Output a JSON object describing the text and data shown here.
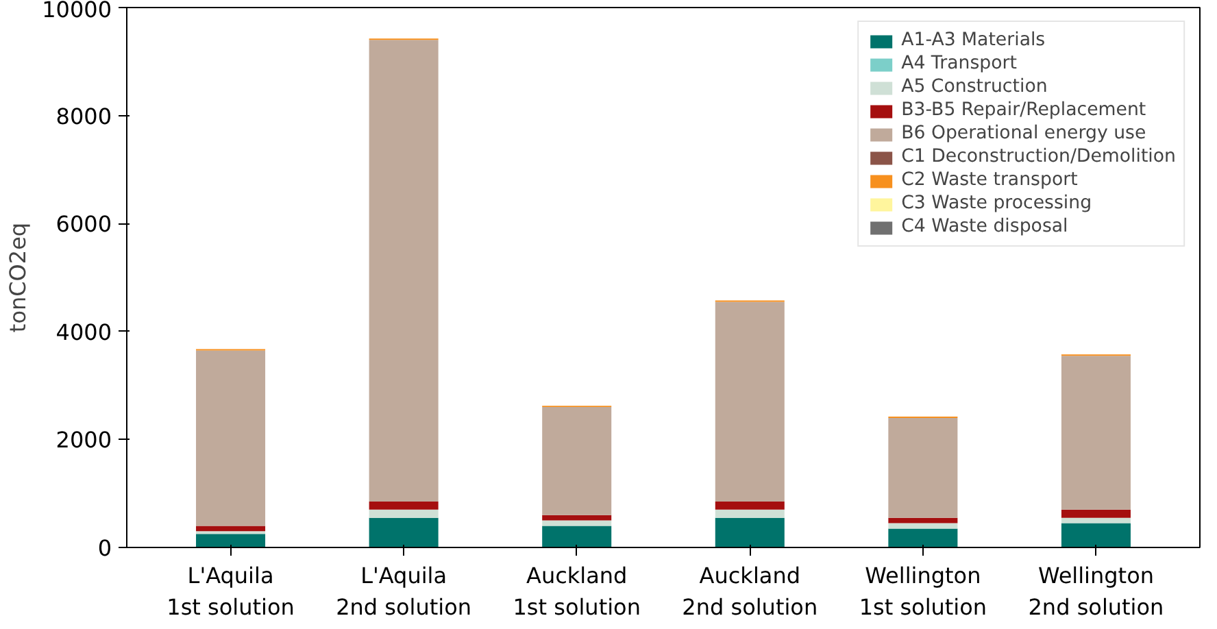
{
  "chart_data": {
    "type": "bar",
    "stacked": true,
    "ylabel": "tonCO2eq",
    "categories": [
      "L'Aquila\n1st solution",
      "L'Aquila\n2nd solution",
      "Auckland\n1st solution",
      "Auckland\n2nd solution",
      "Wellington\n1st solution",
      "Wellington\n2nd solution"
    ],
    "series": [
      {
        "name": "A1-A3 Materials",
        "color": "#00736b",
        "values": [
          250,
          550,
          400,
          550,
          350,
          450
        ]
      },
      {
        "name": "A4 Transport",
        "color": "#7ccfc9",
        "values": [
          null,
          null,
          null,
          null,
          null,
          null
        ]
      },
      {
        "name": "A5 Construction",
        "color": "#cfe0d6",
        "values": [
          50,
          150,
          100,
          150,
          100,
          100
        ]
      },
      {
        "name": "B3-B5 Repair/Replacement",
        "color": "#a50f0f",
        "values": [
          100,
          150,
          100,
          150,
          100,
          150
        ]
      },
      {
        "name": "B6 Operational energy use",
        "color": "#c0aa9b",
        "values": [
          3250,
          8550,
          2000,
          3700,
          1850,
          2850
        ]
      },
      {
        "name": "C1 Deconstruction/Demolition",
        "color": "#8b5448",
        "values": [
          null,
          null,
          null,
          null,
          null,
          null
        ]
      },
      {
        "name": "C2 Waste transport",
        "color": "#f7901e",
        "values": [
          25,
          25,
          25,
          25,
          25,
          25
        ]
      },
      {
        "name": "C3 Waste processing",
        "color": "#fff59d",
        "values": [
          null,
          null,
          null,
          null,
          null,
          null
        ]
      },
      {
        "name": "C4 Waste disposal",
        "color": "#707070",
        "values": [
          null,
          null,
          null,
          null,
          null,
          null
        ]
      }
    ],
    "ylim": [
      0,
      10000
    ],
    "yticks": [
      0,
      2000,
      4000,
      6000,
      8000,
      10000
    ],
    "grid": false,
    "legend": "top right"
  }
}
